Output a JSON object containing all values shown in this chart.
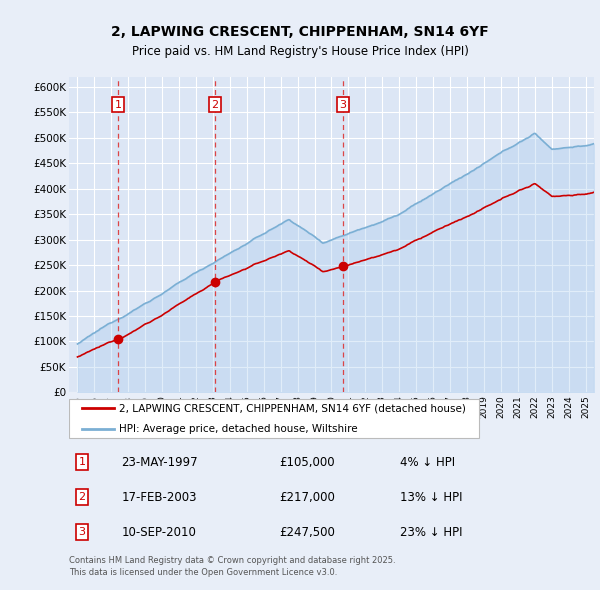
{
  "title": "2, LAPWING CRESCENT, CHIPPENHAM, SN14 6YF",
  "subtitle": "Price paid vs. HM Land Registry's House Price Index (HPI)",
  "ylim": [
    0,
    620000
  ],
  "yticks": [
    0,
    50000,
    100000,
    150000,
    200000,
    250000,
    300000,
    350000,
    400000,
    450000,
    500000,
    550000,
    600000
  ],
  "ytick_labels": [
    "£0",
    "£50K",
    "£100K",
    "£150K",
    "£200K",
    "£250K",
    "£300K",
    "£350K",
    "£400K",
    "£450K",
    "£500K",
    "£550K",
    "£600K"
  ],
  "xlim_start": 1994.5,
  "xlim_end": 2025.5,
  "bg_color": "#e8eef8",
  "plot_bg_color": "#dce6f5",
  "grid_color": "#ffffff",
  "transactions": [
    {
      "num": 1,
      "date": "23-MAY-1997",
      "price": 105000,
      "year": 1997.39,
      "hpi_pct": "4% ↓ HPI"
    },
    {
      "num": 2,
      "date": "17-FEB-2003",
      "price": 217000,
      "year": 2003.12,
      "hpi_pct": "13% ↓ HPI"
    },
    {
      "num": 3,
      "date": "10-SEP-2010",
      "price": 247500,
      "year": 2010.69,
      "hpi_pct": "23% ↓ HPI"
    }
  ],
  "legend_property": "2, LAPWING CRESCENT, CHIPPENHAM, SN14 6YF (detached house)",
  "legend_hpi": "HPI: Average price, detached house, Wiltshire",
  "footer": "Contains HM Land Registry data © Crown copyright and database right 2025.\nThis data is licensed under the Open Government Licence v3.0.",
  "property_color": "#cc0000",
  "hpi_color": "#7bafd4",
  "hpi_fill_color": "#aaccee",
  "marker_color": "#cc0000",
  "vline_color": "#dd3333",
  "label_box_edge_color": "#cc0000",
  "label_text_color": "#cc0000"
}
